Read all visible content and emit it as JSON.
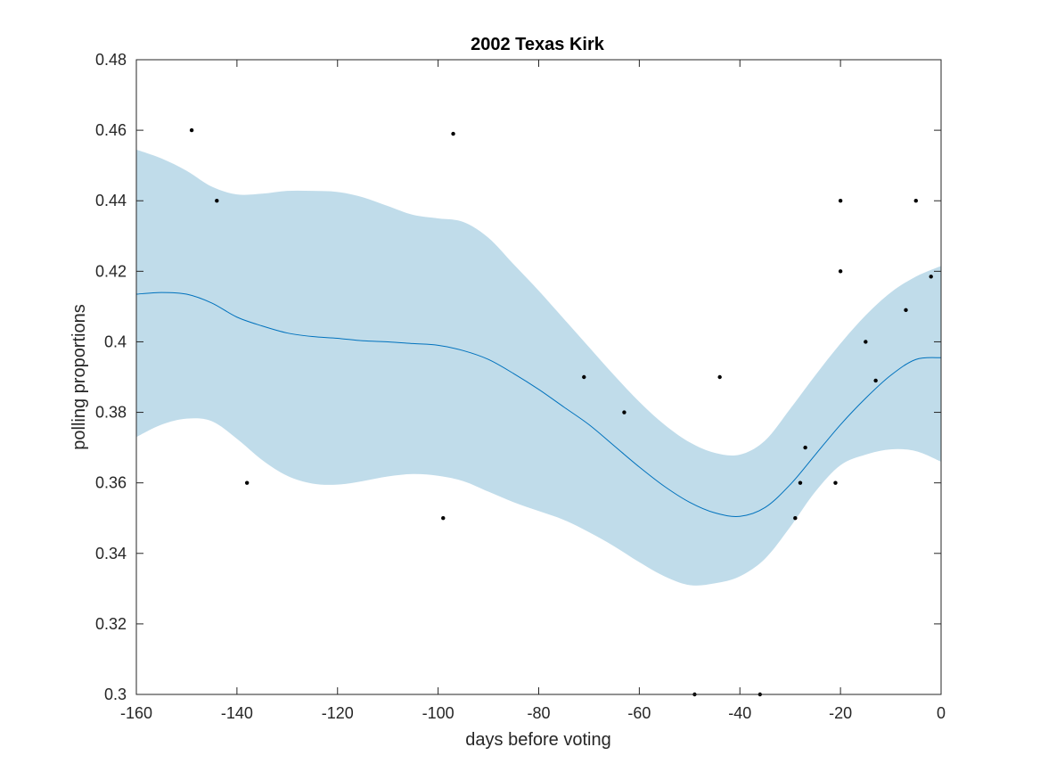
{
  "chart_data": {
    "type": "line",
    "title": "2002 Texas Kirk",
    "xlabel": "days before voting",
    "ylabel": "polling proportions",
    "xlim": [
      -160,
      0
    ],
    "ylim": [
      0.3,
      0.48
    ],
    "xticks": [
      -160,
      -140,
      -120,
      -100,
      -80,
      -60,
      -40,
      -20,
      0
    ],
    "yticks": [
      0.3,
      0.32,
      0.34,
      0.36,
      0.38,
      0.4,
      0.42,
      0.44,
      0.46,
      0.48
    ],
    "xtick_labels": [
      "-160",
      "-140",
      "-120",
      "-100",
      "-80",
      "-60",
      "-40",
      "-20",
      "0"
    ],
    "ytick_labels": [
      "0.3",
      "0.32",
      "0.34",
      "0.36",
      "0.38",
      "0.4",
      "0.42",
      "0.44",
      "0.46",
      "0.48"
    ],
    "grid": false,
    "colors": {
      "band": "#c0dcea",
      "line": "#0072bd",
      "points": "#000000"
    },
    "mean": {
      "x": [
        -160,
        -155,
        -150,
        -145,
        -140,
        -135,
        -130,
        -125,
        -120,
        -115,
        -110,
        -105,
        -100,
        -95,
        -90,
        -85,
        -80,
        -75,
        -70,
        -65,
        -60,
        -55,
        -50,
        -45,
        -40,
        -35,
        -30,
        -25,
        -20,
        -15,
        -10,
        -5,
        0
      ],
      "y": [
        0.4135,
        0.414,
        0.4135,
        0.411,
        0.407,
        0.4045,
        0.4025,
        0.4015,
        0.401,
        0.4003,
        0.4,
        0.3995,
        0.399,
        0.3975,
        0.395,
        0.391,
        0.3865,
        0.3815,
        0.3765,
        0.3705,
        0.3645,
        0.359,
        0.3545,
        0.3515,
        0.3505,
        0.353,
        0.3595,
        0.368,
        0.3765,
        0.384,
        0.3905,
        0.395,
        0.3955
      ]
    },
    "band_upper": {
      "x": [
        -160,
        -155,
        -150,
        -145,
        -140,
        -135,
        -130,
        -125,
        -120,
        -115,
        -110,
        -105,
        -100,
        -95,
        -90,
        -85,
        -80,
        -75,
        -70,
        -65,
        -60,
        -55,
        -50,
        -45,
        -40,
        -35,
        -30,
        -25,
        -20,
        -15,
        -10,
        -5,
        0
      ],
      "y": [
        0.4545,
        0.452,
        0.4485,
        0.444,
        0.4418,
        0.442,
        0.4428,
        0.4428,
        0.4425,
        0.441,
        0.4385,
        0.436,
        0.435,
        0.434,
        0.4295,
        0.422,
        0.4145,
        0.4065,
        0.3985,
        0.3905,
        0.383,
        0.3765,
        0.3715,
        0.3685,
        0.368,
        0.372,
        0.381,
        0.3905,
        0.3995,
        0.4075,
        0.414,
        0.4185,
        0.4215
      ]
    },
    "band_lower": {
      "x": [
        -160,
        -155,
        -150,
        -145,
        -140,
        -135,
        -130,
        -125,
        -120,
        -115,
        -110,
        -105,
        -100,
        -95,
        -90,
        -85,
        -80,
        -75,
        -70,
        -65,
        -60,
        -55,
        -50,
        -45,
        -40,
        -35,
        -30,
        -25,
        -20,
        -15,
        -10,
        -5,
        0
      ],
      "y": [
        0.373,
        0.3765,
        0.3782,
        0.3775,
        0.3725,
        0.3665,
        0.362,
        0.3598,
        0.3595,
        0.3605,
        0.3618,
        0.3625,
        0.362,
        0.3605,
        0.3575,
        0.3545,
        0.352,
        0.3495,
        0.346,
        0.342,
        0.3375,
        0.3335,
        0.331,
        0.3315,
        0.3335,
        0.3385,
        0.3475,
        0.3575,
        0.365,
        0.368,
        0.3695,
        0.369,
        0.366
      ]
    },
    "points": {
      "x": [
        -149,
        -144,
        -138,
        -99,
        -97,
        -71,
        -63,
        -49,
        -44,
        -36,
        -29,
        -28,
        -27,
        -21,
        -20,
        -20,
        -15,
        -13,
        -7,
        -5,
        -2
      ],
      "y": [
        0.46,
        0.44,
        0.36,
        0.35,
        0.459,
        0.39,
        0.38,
        0.3,
        0.39,
        0.3,
        0.35,
        0.36,
        0.37,
        0.36,
        0.44,
        0.42,
        0.4,
        0.389,
        0.409,
        0.44,
        0.4185
      ]
    }
  }
}
